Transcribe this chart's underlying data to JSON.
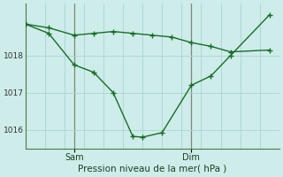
{
  "xlabel": "Pression niveau de la mer( hPa )",
  "bg_color": "#ceecea",
  "line_color": "#1a6b2a",
  "grid_color": "#aed8d4",
  "vline_color": "#7a8a7a",
  "spine_color": "#4a7a4a",
  "ylim": [
    1015.5,
    1019.4
  ],
  "yticks": [
    1016,
    1017,
    1018
  ],
  "xlim": [
    0,
    13
  ],
  "num_grid_x": 13,
  "x_sam": 2.5,
  "x_dim": 8.5,
  "line1_x": [
    0,
    1.2,
    2.5,
    3.5,
    4.5,
    5.5,
    6.5,
    7.5,
    8.5,
    9.5,
    10.5,
    12.5
  ],
  "line1_y": [
    1018.85,
    1018.75,
    1018.55,
    1018.6,
    1018.65,
    1018.6,
    1018.55,
    1018.5,
    1018.35,
    1018.25,
    1018.1,
    1018.15
  ],
  "line2_x": [
    0,
    1.2,
    2.5,
    3.5,
    4.5,
    5.5,
    6.0,
    7.0,
    8.5,
    9.5,
    10.5,
    12.5
  ],
  "line2_y": [
    1018.85,
    1018.6,
    1017.75,
    1017.55,
    1017.0,
    1015.82,
    1015.8,
    1015.92,
    1017.2,
    1017.45,
    1018.0,
    1019.1
  ]
}
